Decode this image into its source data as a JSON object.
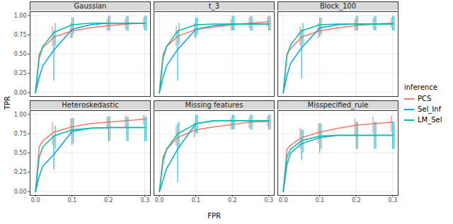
{
  "chart_data": {
    "type": "line",
    "x_label": "FPR",
    "y_label": "TPR",
    "legend_title": "inference",
    "legend": "right",
    "grid": true,
    "xlim": [
      -0.015,
      0.315
    ],
    "ylim": [
      -0.05,
      1.05
    ],
    "xticks": [
      {
        "value": 0,
        "label": "0.0"
      },
      {
        "value": 0.1,
        "label": "0.1"
      },
      {
        "value": 0.2,
        "label": "0.2"
      },
      {
        "value": 0.3,
        "label": "0.3"
      }
    ],
    "yticks": [
      {
        "value": 0,
        "label": "0.00"
      },
      {
        "value": 0.25,
        "label": "0.25"
      },
      {
        "value": 0.5,
        "label": "0.50"
      },
      {
        "value": 0.75,
        "label": "0.75"
      },
      {
        "value": 1,
        "label": "1.00"
      }
    ],
    "x": [
      0,
      0.01,
      0.02,
      0.05,
      0.1,
      0.15,
      0.2,
      0.25,
      0.3
    ],
    "facets": [
      {
        "title": "Gaussian",
        "series": [
          {
            "name": "PCS",
            "color": "#F8766D",
            "values": [
              0,
              0.5,
              0.58,
              0.72,
              0.8,
              0.84,
              0.87,
              0.89,
              0.9
            ],
            "error_low": [
              null,
              null,
              null,
              0.6,
              0.7,
              null,
              0.8,
              0.82,
              0.84
            ],
            "error_high": [
              null,
              null,
              null,
              0.86,
              0.9,
              null,
              0.95,
              0.96,
              0.97
            ]
          },
          {
            "name": "Sel_Inf",
            "color": "#00A9E0",
            "values": [
              0,
              0.2,
              0.35,
              0.55,
              0.82,
              0.88,
              0.9,
              0.9,
              0.9
            ],
            "error_low": [
              null,
              null,
              null,
              0.15,
              0.7,
              null,
              0.8,
              0.8,
              0.8
            ],
            "error_high": [
              null,
              null,
              null,
              0.8,
              0.97,
              null,
              0.99,
              0.99,
              0.99
            ]
          },
          {
            "name": "LM_Sel",
            "color": "#00BFA5",
            "values": [
              0,
              0.45,
              0.6,
              0.78,
              0.88,
              0.9,
              0.9,
              0.9,
              0.9
            ],
            "error_low": [
              null,
              null,
              null,
              0.6,
              0.75,
              null,
              0.8,
              0.8,
              0.8
            ],
            "error_high": [
              null,
              null,
              null,
              0.9,
              0.97,
              null,
              0.99,
              0.99,
              0.99
            ]
          }
        ]
      },
      {
        "title": "t_3",
        "series": [
          {
            "name": "PCS",
            "color": "#F8766D",
            "values": [
              0,
              0.5,
              0.6,
              0.73,
              0.82,
              0.85,
              0.88,
              0.9,
              0.92
            ],
            "error_low": [
              null,
              null,
              null,
              0.6,
              0.72,
              null,
              0.8,
              0.83,
              0.85
            ],
            "error_high": [
              null,
              null,
              null,
              0.86,
              0.9,
              null,
              0.95,
              0.97,
              0.98
            ]
          },
          {
            "name": "Sel_Inf",
            "color": "#00A9E0",
            "values": [
              0,
              0.2,
              0.35,
              0.56,
              0.82,
              0.87,
              0.89,
              0.89,
              0.89
            ],
            "error_low": [
              null,
              null,
              null,
              0.15,
              0.7,
              null,
              0.8,
              0.8,
              0.8
            ],
            "error_high": [
              null,
              null,
              null,
              0.8,
              0.97,
              null,
              0.99,
              0.99,
              0.99
            ]
          },
          {
            "name": "LM_Sel",
            "color": "#00BFA5",
            "values": [
              0,
              0.45,
              0.6,
              0.8,
              0.88,
              0.89,
              0.89,
              0.89,
              0.89
            ],
            "error_low": [
              null,
              null,
              null,
              0.62,
              0.75,
              null,
              0.8,
              0.8,
              0.8
            ],
            "error_high": [
              null,
              null,
              null,
              0.9,
              0.97,
              null,
              0.99,
              0.99,
              0.99
            ]
          }
        ]
      },
      {
        "title": "Block_100",
        "series": [
          {
            "name": "PCS",
            "color": "#F8766D",
            "values": [
              0,
              0.5,
              0.57,
              0.72,
              0.8,
              0.84,
              0.87,
              0.89,
              0.9
            ],
            "error_low": [
              null,
              null,
              null,
              0.6,
              0.7,
              null,
              0.8,
              0.82,
              0.84
            ],
            "error_high": [
              null,
              null,
              null,
              0.86,
              0.9,
              null,
              0.95,
              0.96,
              0.97
            ]
          },
          {
            "name": "Sel_Inf",
            "color": "#00A9E0",
            "values": [
              0,
              0.22,
              0.38,
              0.58,
              0.84,
              0.88,
              0.89,
              0.89,
              0.89
            ],
            "error_low": [
              null,
              null,
              null,
              0.18,
              0.72,
              null,
              0.8,
              0.8,
              0.8
            ],
            "error_high": [
              null,
              null,
              null,
              0.82,
              0.97,
              null,
              0.99,
              0.99,
              0.99
            ]
          },
          {
            "name": "LM_Sel",
            "color": "#00BFA5",
            "values": [
              0,
              0.48,
              0.62,
              0.8,
              0.88,
              0.89,
              0.89,
              0.89,
              0.89
            ],
            "error_low": [
              null,
              null,
              null,
              0.62,
              0.75,
              null,
              0.8,
              0.8,
              0.8
            ],
            "error_high": [
              null,
              null,
              null,
              0.9,
              0.97,
              null,
              0.99,
              0.99,
              0.99
            ]
          }
        ]
      },
      {
        "title": "Heteroskedastic",
        "series": [
          {
            "name": "PCS",
            "color": "#F8766D",
            "values": [
              0,
              0.58,
              0.66,
              0.77,
              0.84,
              0.88,
              0.9,
              0.92,
              0.94
            ],
            "error_low": [
              null,
              null,
              null,
              0.6,
              0.72,
              null,
              0.8,
              0.83,
              0.86
            ],
            "error_high": [
              null,
              null,
              null,
              0.9,
              0.94,
              null,
              0.97,
              0.98,
              0.99
            ]
          },
          {
            "name": "Sel_Inf",
            "color": "#00A9E0",
            "values": [
              0,
              0.2,
              0.33,
              0.48,
              0.78,
              0.82,
              0.83,
              0.83,
              0.83
            ],
            "error_low": [
              null,
              null,
              null,
              0.28,
              0.6,
              null,
              0.65,
              0.65,
              0.65
            ],
            "error_high": [
              null,
              null,
              null,
              0.72,
              0.95,
              null,
              0.97,
              0.97,
              0.97
            ]
          },
          {
            "name": "LM_Sel",
            "color": "#00BFA5",
            "values": [
              0,
              0.45,
              0.58,
              0.72,
              0.8,
              0.82,
              0.83,
              0.83,
              0.83
            ],
            "error_low": [
              null,
              null,
              null,
              0.55,
              0.62,
              null,
              0.65,
              0.65,
              0.65
            ],
            "error_high": [
              null,
              null,
              null,
              0.85,
              0.95,
              null,
              0.97,
              0.97,
              0.97
            ]
          }
        ]
      },
      {
        "title": "Missing features",
        "series": [
          {
            "name": "PCS",
            "color": "#F8766D",
            "values": [
              0,
              0.45,
              0.55,
              0.7,
              0.8,
              0.84,
              0.87,
              0.9,
              0.91
            ],
            "error_low": [
              null,
              null,
              null,
              0.58,
              0.7,
              null,
              0.8,
              0.82,
              0.84
            ],
            "error_high": [
              null,
              null,
              null,
              0.85,
              0.9,
              null,
              0.95,
              0.96,
              0.97
            ]
          },
          {
            "name": "Sel_Inf",
            "color": "#00A9E0",
            "values": [
              0,
              0.15,
              0.3,
              0.55,
              0.88,
              0.92,
              0.92,
              0.92,
              0.92
            ],
            "error_low": [
              null,
              null,
              null,
              0.12,
              0.75,
              null,
              0.8,
              0.8,
              0.8
            ],
            "error_high": [
              null,
              null,
              null,
              0.88,
              0.99,
              null,
              0.99,
              0.99,
              0.99
            ]
          },
          {
            "name": "LM_Sel",
            "color": "#00BFA5",
            "values": [
              0,
              0.4,
              0.55,
              0.75,
              0.88,
              0.92,
              0.92,
              0.92,
              0.92
            ],
            "error_low": [
              null,
              null,
              null,
              0.58,
              0.75,
              null,
              0.8,
              0.8,
              0.8
            ],
            "error_high": [
              null,
              null,
              null,
              0.9,
              0.99,
              null,
              0.99,
              0.99,
              0.99
            ]
          }
        ]
      },
      {
        "title": "Misspecified_rule",
        "series": [
          {
            "name": "PCS",
            "color": "#F8766D",
            "values": [
              0,
              0.55,
              0.6,
              0.7,
              0.77,
              0.82,
              0.86,
              0.88,
              0.9
            ],
            "error_low": [
              null,
              null,
              null,
              0.55,
              0.62,
              null,
              0.72,
              0.75,
              0.77
            ],
            "error_high": [
              null,
              null,
              null,
              0.82,
              0.88,
              null,
              0.95,
              0.97,
              0.98
            ]
          },
          {
            "name": "Sel_Inf",
            "color": "#00A9E0",
            "values": [
              0,
              0.35,
              0.5,
              0.62,
              0.7,
              0.73,
              0.73,
              0.73,
              0.73
            ],
            "error_low": [
              null,
              null,
              null,
              0.4,
              0.5,
              null,
              0.55,
              0.55,
              0.55
            ],
            "error_high": [
              null,
              null,
              null,
              0.8,
              0.88,
              null,
              0.9,
              0.9,
              0.9
            ]
          },
          {
            "name": "LM_Sel",
            "color": "#00BFA5",
            "values": [
              0,
              0.45,
              0.55,
              0.66,
              0.72,
              0.73,
              0.73,
              0.73,
              0.73
            ],
            "error_low": [
              null,
              null,
              null,
              0.5,
              0.55,
              null,
              0.55,
              0.55,
              0.55
            ],
            "error_high": [
              null,
              null,
              null,
              0.8,
              0.88,
              null,
              0.9,
              0.9,
              0.9
            ]
          }
        ]
      }
    ]
  }
}
